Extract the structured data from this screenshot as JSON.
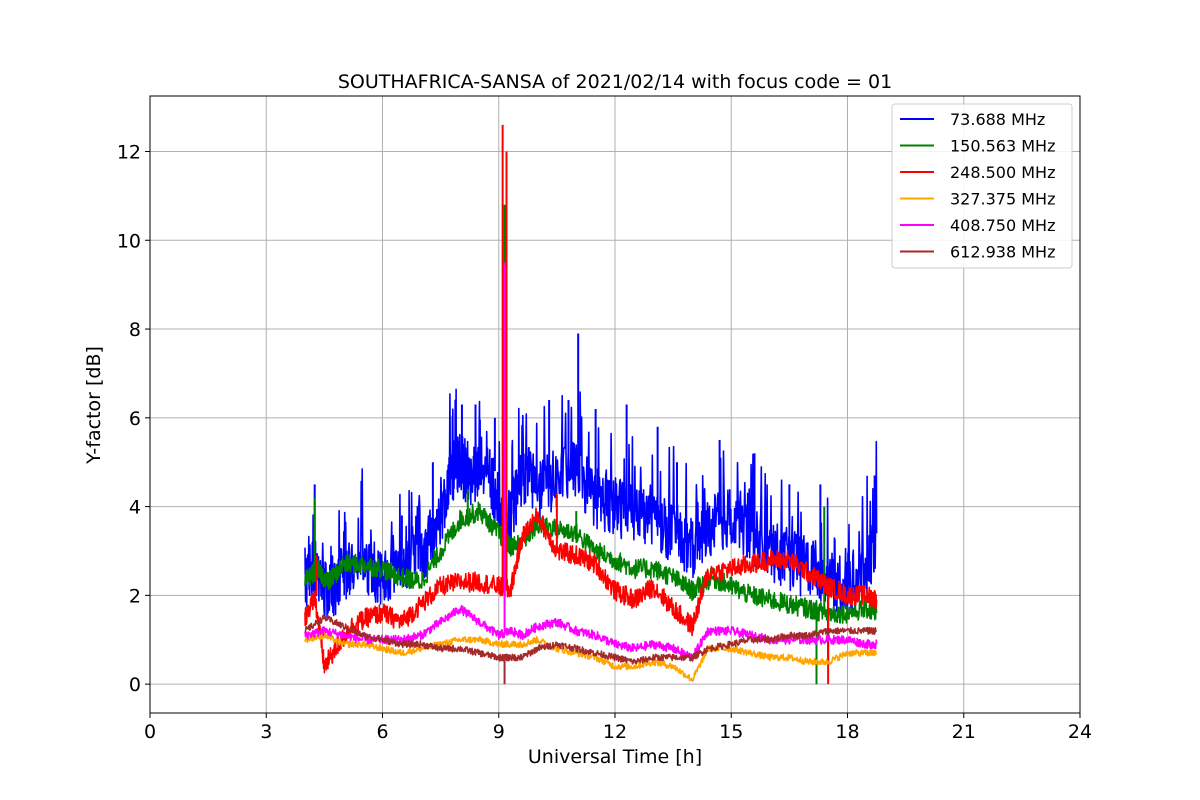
{
  "chart_data": {
    "type": "line",
    "title": "SOUTHAFRICA-SANSA of 2021/02/14 with focus code = 01",
    "xlabel": "Universal Time [h]",
    "ylabel": "Y-factor [dB]",
    "xlim": [
      0,
      24
    ],
    "ylim": [
      -0.65,
      13.25
    ],
    "xticks": [
      0,
      3,
      6,
      9,
      12,
      15,
      18,
      21,
      24
    ],
    "yticks": [
      0,
      2,
      4,
      6,
      8,
      10,
      12
    ],
    "xtick_labels": [
      "0",
      "3",
      "6",
      "9",
      "12",
      "15",
      "18",
      "21",
      "24"
    ],
    "ytick_labels": [
      "0",
      "2",
      "4",
      "6",
      "8",
      "10",
      "12"
    ],
    "grid": true,
    "legend_position": "top-right",
    "series": [
      {
        "name": " 73.688 MHz",
        "color": "#0000ff",
        "x": [
          4.0,
          4.3,
          4.6,
          5.0,
          5.5,
          6.0,
          6.5,
          7.0,
          7.5,
          7.8,
          8.0,
          8.3,
          8.6,
          9.0,
          9.3,
          9.6,
          10.0,
          10.5,
          11.0,
          11.5,
          12.0,
          12.5,
          13.0,
          13.5,
          14.0,
          14.5,
          15.0,
          15.5,
          16.0,
          16.5,
          17.0,
          17.5,
          18.0,
          18.5,
          18.75
        ],
        "y": [
          2.4,
          2.6,
          2.0,
          2.5,
          2.8,
          2.4,
          2.9,
          2.8,
          3.8,
          4.8,
          5.0,
          4.6,
          4.8,
          4.2,
          3.6,
          4.8,
          4.4,
          4.6,
          4.8,
          4.2,
          4.0,
          3.9,
          3.8,
          3.4,
          3.0,
          3.6,
          3.8,
          3.4,
          3.0,
          2.8,
          2.6,
          2.4,
          2.2,
          2.6,
          3.4
        ],
        "spikes": [
          [
            4.25,
            4.5
          ],
          [
            6.5,
            3.8
          ],
          [
            7.3,
            5.0
          ],
          [
            8.05,
            6.3
          ],
          [
            8.4,
            6.3
          ],
          [
            8.9,
            6.0
          ],
          [
            10.3,
            6.4
          ],
          [
            10.8,
            6.4
          ],
          [
            11.05,
            7.9
          ],
          [
            11.5,
            6.2
          ],
          [
            12.3,
            6.3
          ],
          [
            13.1,
            5.8
          ],
          [
            13.6,
            5.0
          ],
          [
            14.7,
            5.5
          ],
          [
            15.6,
            5.2
          ],
          [
            16.5,
            4.5
          ],
          [
            17.3,
            4.5
          ],
          [
            17.5,
            0.5
          ],
          [
            18.7,
            4.7
          ]
        ]
      },
      {
        "name": "150.563 MHz",
        "color": "#008000",
        "x": [
          4.0,
          4.3,
          4.6,
          5.0,
          5.5,
          6.0,
          6.5,
          7.0,
          7.5,
          8.0,
          8.5,
          9.0,
          9.3,
          9.6,
          10.0,
          10.5,
          11.0,
          11.5,
          12.0,
          12.5,
          13.0,
          13.5,
          14.0,
          14.5,
          15.0,
          15.5,
          16.0,
          16.5,
          17.0,
          17.5,
          18.0,
          18.5,
          18.75
        ],
        "y": [
          2.3,
          2.6,
          2.3,
          2.7,
          2.7,
          2.6,
          2.4,
          2.3,
          3.0,
          3.7,
          3.9,
          3.4,
          3.1,
          3.2,
          3.6,
          3.5,
          3.4,
          3.0,
          2.8,
          2.6,
          2.6,
          2.4,
          2.1,
          2.4,
          2.2,
          2.0,
          1.9,
          1.8,
          1.7,
          1.6,
          1.6,
          1.7,
          1.6
        ],
        "spikes": [
          [
            4.25,
            4.2
          ],
          [
            8.2,
            4.4
          ],
          [
            9.15,
            10.8
          ],
          [
            11.0,
            3.9
          ],
          [
            17.4,
            4.0
          ],
          [
            17.2,
            0.0
          ]
        ]
      },
      {
        "name": "248.500 MHz",
        "color": "#ff0000",
        "x": [
          4.0,
          4.25,
          4.5,
          4.8,
          5.2,
          5.6,
          6.0,
          6.5,
          7.0,
          7.5,
          8.0,
          8.5,
          9.0,
          9.3,
          9.6,
          10.0,
          10.5,
          11.0,
          11.5,
          12.0,
          12.5,
          13.0,
          13.5,
          14.0,
          14.4,
          15.0,
          15.5,
          16.0,
          16.5,
          17.0,
          17.5,
          18.0,
          18.5,
          18.75
        ],
        "y": [
          1.5,
          2.0,
          0.4,
          0.8,
          1.3,
          1.5,
          1.6,
          1.4,
          1.8,
          2.2,
          2.3,
          2.3,
          2.2,
          2.1,
          3.3,
          3.8,
          3.0,
          2.9,
          2.7,
          2.1,
          1.9,
          2.2,
          1.7,
          1.3,
          2.5,
          2.6,
          2.7,
          2.8,
          2.8,
          2.5,
          2.2,
          2.0,
          2.0,
          1.9
        ],
        "spikes": [
          [
            4.3,
            2.9
          ],
          [
            9.1,
            12.6
          ],
          [
            9.2,
            12.0
          ],
          [
            10.5,
            4.3
          ],
          [
            17.5,
            0.0
          ]
        ]
      },
      {
        "name": "327.375 MHz",
        "color": "#ffa500",
        "x": [
          4.0,
          4.5,
          5.0,
          5.5,
          6.0,
          6.5,
          7.0,
          7.5,
          8.0,
          8.5,
          9.0,
          9.3,
          9.6,
          10.0,
          10.5,
          11.0,
          11.5,
          12.0,
          12.5,
          13.0,
          13.5,
          14.0,
          14.4,
          15.0,
          15.5,
          16.0,
          16.5,
          17.0,
          17.5,
          18.0,
          18.5,
          18.75
        ],
        "y": [
          1.0,
          1.1,
          0.9,
          0.9,
          0.8,
          0.7,
          0.8,
          0.9,
          1.0,
          1.0,
          0.9,
          0.9,
          0.9,
          1.0,
          0.8,
          0.7,
          0.6,
          0.4,
          0.4,
          0.5,
          0.4,
          0.1,
          0.8,
          0.8,
          0.7,
          0.6,
          0.6,
          0.5,
          0.5,
          0.7,
          0.7,
          0.7
        ]
      },
      {
        "name": "408.750 MHz",
        "color": "#ff00ff",
        "x": [
          4.0,
          4.5,
          5.0,
          5.5,
          6.0,
          6.5,
          7.0,
          7.5,
          8.0,
          8.5,
          9.0,
          9.3,
          9.6,
          10.0,
          10.5,
          11.0,
          11.5,
          12.0,
          12.5,
          13.0,
          13.5,
          14.0,
          14.4,
          15.0,
          15.5,
          16.0,
          16.5,
          17.0,
          17.5,
          18.0,
          18.5,
          18.75
        ],
        "y": [
          1.1,
          1.2,
          1.1,
          1.0,
          1.0,
          1.0,
          1.1,
          1.4,
          1.7,
          1.4,
          1.1,
          1.2,
          1.1,
          1.3,
          1.4,
          1.2,
          1.1,
          0.9,
          0.8,
          0.9,
          0.8,
          0.6,
          1.2,
          1.2,
          1.1,
          1.0,
          1.0,
          1.0,
          1.0,
          1.0,
          0.9,
          0.9
        ],
        "spikes": [
          [
            9.15,
            9.5
          ]
        ]
      },
      {
        "name": "612.938 MHz",
        "color": "#a52a2a",
        "x": [
          4.0,
          4.5,
          5.0,
          5.5,
          6.0,
          6.5,
          7.0,
          7.5,
          8.0,
          8.5,
          9.0,
          9.3,
          9.6,
          10.0,
          10.5,
          11.0,
          11.5,
          12.0,
          12.5,
          13.0,
          13.5,
          14.0,
          14.4,
          15.0,
          15.5,
          16.0,
          16.5,
          17.0,
          17.5,
          18.0,
          18.5,
          18.75
        ],
        "y": [
          1.2,
          1.5,
          1.3,
          1.1,
          1.0,
          0.9,
          0.9,
          0.8,
          0.8,
          0.7,
          0.6,
          0.6,
          0.6,
          0.8,
          0.9,
          0.8,
          0.7,
          0.6,
          0.5,
          0.6,
          0.6,
          0.6,
          0.8,
          0.9,
          1.0,
          1.0,
          1.1,
          1.1,
          1.2,
          1.2,
          1.2,
          1.2
        ],
        "spikes": [
          [
            9.15,
            0.0
          ]
        ]
      }
    ]
  }
}
